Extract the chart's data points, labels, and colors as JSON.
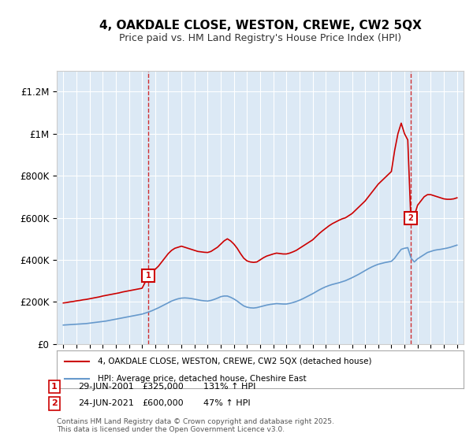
{
  "title": "4, OAKDALE CLOSE, WESTON, CREWE, CW2 5QX",
  "subtitle": "Price paid vs. HM Land Registry's House Price Index (HPI)",
  "background_color": "#dce9f5",
  "plot_bg_color": "#dce9f5",
  "ylabel_color": "#000000",
  "red_line_color": "#cc0000",
  "blue_line_color": "#6699cc",
  "transaction1": {
    "date_num": 2001.49,
    "price": 325000,
    "label": "1",
    "hpi_pct": "131% ↑ HPI",
    "date_str": "29-JUN-2001"
  },
  "transaction2": {
    "date_num": 2021.48,
    "price": 600000,
    "label": "2",
    "hpi_pct": "47% ↑ HPI",
    "date_str": "24-JUN-2021"
  },
  "legend_line1": "4, OAKDALE CLOSE, WESTON, CREWE, CW2 5QX (detached house)",
  "legend_line2": "HPI: Average price, detached house, Cheshire East",
  "footer": "Contains HM Land Registry data © Crown copyright and database right 2025.\nThis data is licensed under the Open Government Licence v3.0.",
  "table_row1": [
    "1",
    "29-JUN-2001",
    "£325,000",
    "131% ↑ HPI"
  ],
  "table_row2": [
    "2",
    "24-JUN-2021",
    "£600,000",
    "47% ↑ HPI"
  ],
  "ylim": [
    0,
    1300000
  ],
  "xlim": [
    1994.5,
    2025.5
  ],
  "yticks": [
    0,
    200000,
    400000,
    600000,
    800000,
    1000000,
    1200000
  ],
  "ytick_labels": [
    "£0",
    "£200K",
    "£400K",
    "£600K",
    "£800K",
    "£1M",
    "£1.2M"
  ],
  "xticks": [
    1995,
    1996,
    1997,
    1998,
    1999,
    2000,
    2001,
    2002,
    2003,
    2004,
    2005,
    2006,
    2007,
    2008,
    2009,
    2010,
    2011,
    2012,
    2013,
    2014,
    2015,
    2016,
    2017,
    2018,
    2019,
    2020,
    2021,
    2022,
    2023,
    2024,
    2025
  ],
  "red_x": [
    1995.0,
    1995.25,
    1995.5,
    1995.75,
    1996.0,
    1996.25,
    1996.5,
    1996.75,
    1997.0,
    1997.25,
    1997.5,
    1997.75,
    1998.0,
    1998.25,
    1998.5,
    1998.75,
    1999.0,
    1999.25,
    1999.5,
    1999.75,
    2000.0,
    2000.25,
    2000.5,
    2000.75,
    2001.0,
    2001.25,
    2001.49,
    2001.75,
    2002.0,
    2002.25,
    2002.5,
    2002.75,
    2003.0,
    2003.25,
    2003.5,
    2003.75,
    2004.0,
    2004.25,
    2004.5,
    2004.75,
    2005.0,
    2005.25,
    2005.5,
    2005.75,
    2006.0,
    2006.25,
    2006.5,
    2006.75,
    2007.0,
    2007.25,
    2007.5,
    2007.75,
    2008.0,
    2008.25,
    2008.5,
    2008.75,
    2009.0,
    2009.25,
    2009.5,
    2009.75,
    2010.0,
    2010.25,
    2010.5,
    2010.75,
    2011.0,
    2011.25,
    2011.5,
    2011.75,
    2012.0,
    2012.25,
    2012.5,
    2012.75,
    2013.0,
    2013.25,
    2013.5,
    2013.75,
    2014.0,
    2014.25,
    2014.5,
    2014.75,
    2015.0,
    2015.25,
    2015.5,
    2015.75,
    2016.0,
    2016.25,
    2016.5,
    2016.75,
    2017.0,
    2017.25,
    2017.5,
    2017.75,
    2018.0,
    2018.25,
    2018.5,
    2018.75,
    2019.0,
    2019.25,
    2019.5,
    2019.75,
    2020.0,
    2020.25,
    2020.5,
    2020.75,
    2021.0,
    2021.25,
    2021.48,
    2021.75,
    2022.0,
    2022.25,
    2022.5,
    2022.75,
    2023.0,
    2023.25,
    2023.5,
    2023.75,
    2024.0,
    2024.25,
    2024.5,
    2024.75,
    2025.0
  ],
  "red_y": [
    195000,
    197000,
    200000,
    202000,
    205000,
    207000,
    210000,
    212000,
    215000,
    218000,
    221000,
    224000,
    228000,
    231000,
    234000,
    237000,
    240000,
    243000,
    247000,
    250000,
    253000,
    256000,
    259000,
    262000,
    265000,
    295000,
    325000,
    340000,
    355000,
    370000,
    390000,
    410000,
    430000,
    445000,
    455000,
    460000,
    465000,
    460000,
    455000,
    450000,
    445000,
    440000,
    438000,
    436000,
    435000,
    440000,
    450000,
    460000,
    475000,
    490000,
    500000,
    490000,
    475000,
    455000,
    430000,
    408000,
    395000,
    390000,
    388000,
    390000,
    400000,
    410000,
    418000,
    423000,
    428000,
    432000,
    430000,
    428000,
    428000,
    432000,
    438000,
    445000,
    455000,
    465000,
    475000,
    485000,
    495000,
    510000,
    525000,
    538000,
    550000,
    562000,
    572000,
    580000,
    588000,
    595000,
    600000,
    610000,
    620000,
    635000,
    650000,
    665000,
    680000,
    700000,
    720000,
    740000,
    760000,
    775000,
    790000,
    805000,
    820000,
    920000,
    1000000,
    1050000,
    1000000,
    970000,
    600000,
    610000,
    660000,
    680000,
    700000,
    710000,
    710000,
    705000,
    700000,
    695000,
    690000,
    688000,
    688000,
    690000,
    695000
  ],
  "blue_x": [
    1995.0,
    1995.25,
    1995.5,
    1995.75,
    1996.0,
    1996.25,
    1996.5,
    1996.75,
    1997.0,
    1997.25,
    1997.5,
    1997.75,
    1998.0,
    1998.25,
    1998.5,
    1998.75,
    1999.0,
    1999.25,
    1999.5,
    1999.75,
    2000.0,
    2000.25,
    2000.5,
    2000.75,
    2001.0,
    2001.25,
    2001.5,
    2001.75,
    2002.0,
    2002.25,
    2002.5,
    2002.75,
    2003.0,
    2003.25,
    2003.5,
    2003.75,
    2004.0,
    2004.25,
    2004.5,
    2004.75,
    2005.0,
    2005.25,
    2005.5,
    2005.75,
    2006.0,
    2006.25,
    2006.5,
    2006.75,
    2007.0,
    2007.25,
    2007.5,
    2007.75,
    2008.0,
    2008.25,
    2008.5,
    2008.75,
    2009.0,
    2009.25,
    2009.5,
    2009.75,
    2010.0,
    2010.25,
    2010.5,
    2010.75,
    2011.0,
    2011.25,
    2011.5,
    2011.75,
    2012.0,
    2012.25,
    2012.5,
    2012.75,
    2013.0,
    2013.25,
    2013.5,
    2013.75,
    2014.0,
    2014.25,
    2014.5,
    2014.75,
    2015.0,
    2015.25,
    2015.5,
    2015.75,
    2016.0,
    2016.25,
    2016.5,
    2016.75,
    2017.0,
    2017.25,
    2017.5,
    2017.75,
    2018.0,
    2018.25,
    2018.5,
    2018.75,
    2019.0,
    2019.25,
    2019.5,
    2019.75,
    2020.0,
    2020.25,
    2020.5,
    2020.75,
    2021.0,
    2021.25,
    2021.5,
    2021.75,
    2022.0,
    2022.25,
    2022.5,
    2022.75,
    2023.0,
    2023.25,
    2023.5,
    2023.75,
    2024.0,
    2024.25,
    2024.5,
    2024.75,
    2025.0
  ],
  "blue_y": [
    90000,
    91000,
    92000,
    93000,
    94000,
    95000,
    96000,
    97000,
    99000,
    101000,
    103000,
    105000,
    107000,
    109000,
    112000,
    115000,
    118000,
    121000,
    124000,
    127000,
    130000,
    133000,
    136000,
    139000,
    142000,
    147000,
    152000,
    158000,
    165000,
    172000,
    180000,
    188000,
    196000,
    204000,
    210000,
    215000,
    218000,
    219000,
    218000,
    216000,
    213000,
    210000,
    207000,
    205000,
    204000,
    207000,
    212000,
    218000,
    225000,
    228000,
    228000,
    222000,
    214000,
    204000,
    192000,
    181000,
    175000,
    172000,
    171000,
    173000,
    177000,
    181000,
    185000,
    188000,
    190000,
    192000,
    191000,
    190000,
    190000,
    193000,
    197000,
    202000,
    208000,
    215000,
    223000,
    231000,
    239000,
    248000,
    257000,
    265000,
    272000,
    278000,
    283000,
    287000,
    291000,
    296000,
    301000,
    308000,
    315000,
    323000,
    331000,
    340000,
    349000,
    358000,
    366000,
    373000,
    379000,
    383000,
    387000,
    390000,
    393000,
    408000,
    430000,
    450000,
    455000,
    458000,
    408000,
    390000,
    405000,
    415000,
    425000,
    435000,
    440000,
    445000,
    448000,
    450000,
    453000,
    456000,
    460000,
    465000,
    470000
  ]
}
